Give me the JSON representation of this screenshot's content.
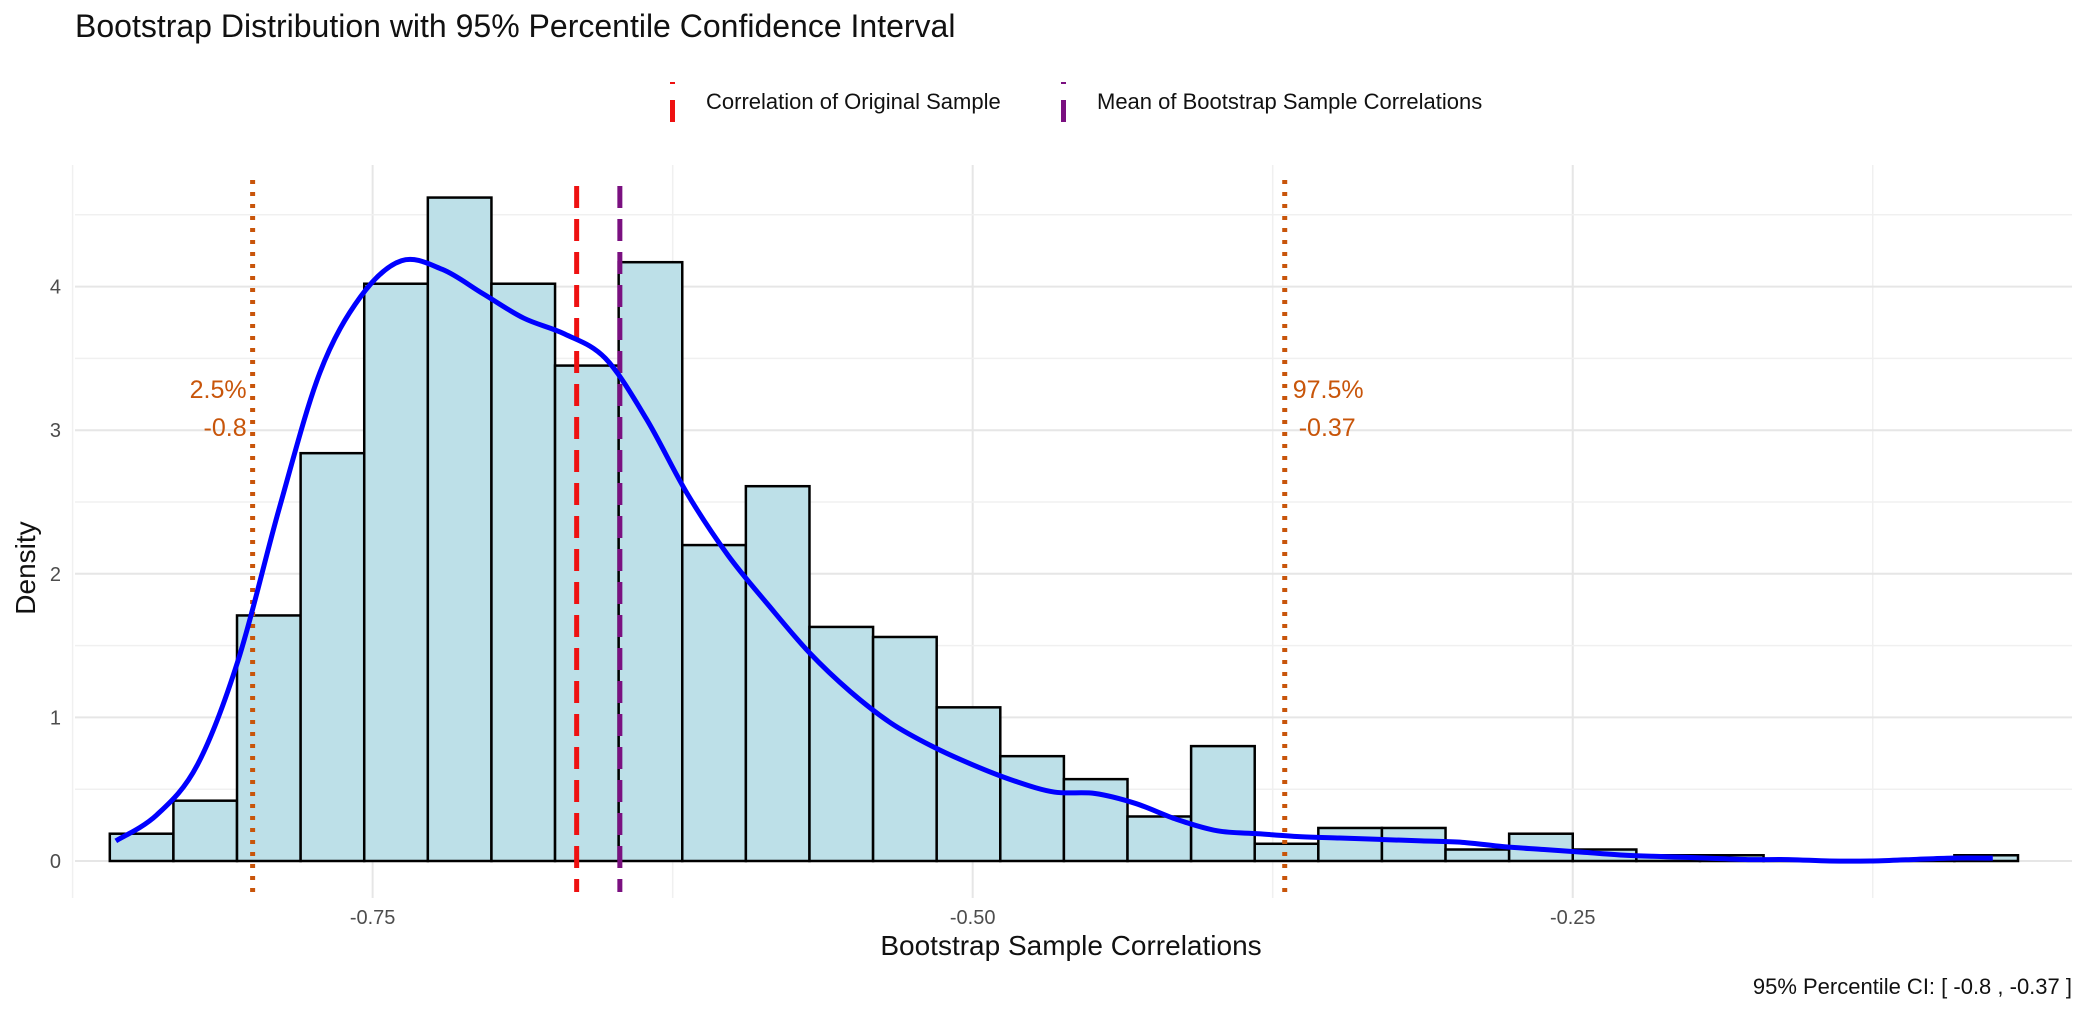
{
  "colors": {
    "bar_fill": "#bde0e8",
    "bar_stroke": "#000000",
    "density_line": "#0000ff",
    "original_line": "#ee1111",
    "mean_line": "#7a1080",
    "ci_line": "#c8550a",
    "grid": "#e6e6e6"
  },
  "chart_data": {
    "type": "bar",
    "title": "Bootstrap Distribution with 95% Percentile Confidence Interval",
    "xlabel": "Bootstrap Sample Correlations",
    "ylabel": "Density",
    "xlim": [
      -0.874,
      -0.042
    ],
    "ylim": [
      0,
      4.75
    ],
    "x_ticks": [
      -0.75,
      -0.5,
      -0.25
    ],
    "x_tick_labels": [
      "-0.75",
      "-0.50",
      "-0.25"
    ],
    "y_ticks": [
      0,
      1,
      2,
      3,
      4
    ],
    "y_tick_labels": [
      "0",
      "1",
      "2",
      "3",
      "4"
    ],
    "grid": true,
    "legend_position": "top",
    "histogram": {
      "bin_width": 0.0265,
      "bin_starts": [
        -0.8595,
        -0.833,
        -0.8065,
        -0.78,
        -0.7535,
        -0.727,
        -0.7005,
        -0.674,
        -0.6475,
        -0.621,
        -0.5945,
        -0.568,
        -0.5415,
        -0.515,
        -0.4885,
        -0.462,
        -0.4355,
        -0.409,
        -0.3825,
        -0.356,
        -0.3295,
        -0.303,
        -0.2765,
        -0.25,
        -0.2235,
        -0.197,
        -0.1705,
        -0.144,
        -0.1175,
        -0.091
      ],
      "density": [
        0.19,
        0.42,
        1.71,
        2.84,
        4.02,
        4.62,
        4.02,
        3.45,
        4.17,
        2.2,
        2.61,
        1.63,
        1.56,
        1.07,
        0.73,
        0.57,
        0.31,
        0.8,
        0.12,
        0.23,
        0.23,
        0.08,
        0.19,
        0.08,
        0.04,
        0.04,
        0.0,
        0.0,
        0.0,
        0.04
      ]
    },
    "density_curve": {
      "x": [
        -0.857,
        -0.84,
        -0.823,
        -0.806,
        -0.789,
        -0.772,
        -0.755,
        -0.738,
        -0.721,
        -0.704,
        -0.687,
        -0.67,
        -0.653,
        -0.636,
        -0.619,
        -0.602,
        -0.585,
        -0.568,
        -0.551,
        -0.534,
        -0.517,
        -0.5,
        -0.483,
        -0.466,
        -0.449,
        -0.432,
        -0.415,
        -0.398,
        -0.381,
        -0.364,
        -0.347,
        -0.33,
        -0.313,
        -0.296,
        -0.279,
        -0.262,
        -0.245,
        -0.228,
        -0.211,
        -0.194,
        -0.177,
        -0.16,
        -0.143,
        -0.126,
        -0.109,
        -0.092,
        -0.075
      ],
      "y": [
        0.14,
        0.32,
        0.67,
        1.4,
        2.45,
        3.4,
        3.93,
        4.18,
        4.12,
        3.95,
        3.78,
        3.67,
        3.5,
        3.08,
        2.56,
        2.13,
        1.78,
        1.45,
        1.18,
        0.96,
        0.8,
        0.67,
        0.56,
        0.48,
        0.47,
        0.4,
        0.29,
        0.21,
        0.19,
        0.17,
        0.16,
        0.15,
        0.14,
        0.13,
        0.1,
        0.08,
        0.06,
        0.04,
        0.03,
        0.02,
        0.01,
        0.01,
        0.0,
        0.0,
        0.01,
        0.02,
        0.02
      ]
    },
    "reference_lines": {
      "original_correlation": -0.665,
      "bootstrap_mean": -0.647,
      "ci_lower": -0.8,
      "ci_upper": -0.37
    },
    "annotations": {
      "ci_lower_pct": "2.5%",
      "ci_lower_val": "-0.8",
      "ci_upper_pct": "97.5%",
      "ci_upper_val": "-0.37"
    },
    "legend": [
      {
        "label": "Correlation of Original Sample",
        "color": "#ee1111"
      },
      {
        "label": "Mean of Bootstrap Sample Correlations",
        "color": "#7a1080"
      }
    ],
    "caption": "95% Percentile CI: [ -0.8 ,  -0.37 ]"
  }
}
